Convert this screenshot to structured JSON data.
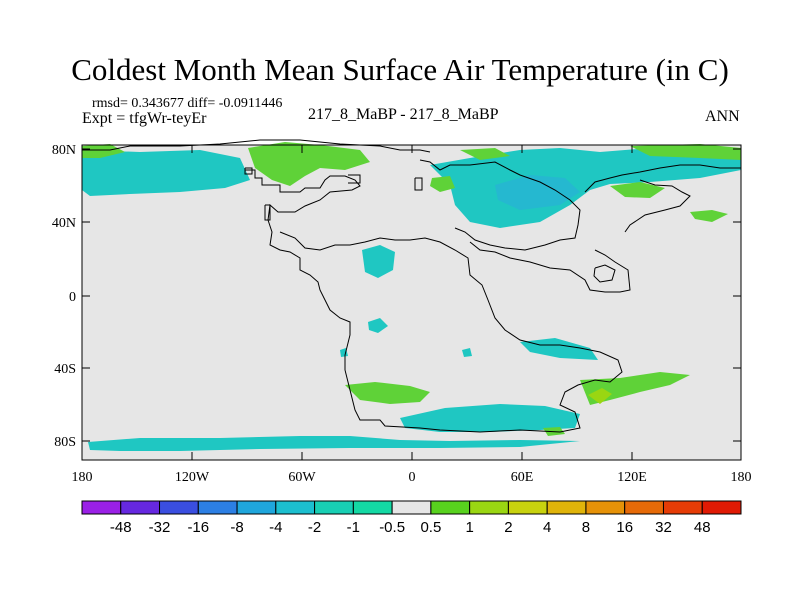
{
  "title": "Coldest Month Mean Surface Air Temperature (in C)",
  "stats": "rmsd= 0.343677 diff= -0.0911446",
  "experiment": "Expt = tfgWr-teyEr",
  "case": "217_8_MaBP - 217_8_MaBP",
  "season": "ANN",
  "colors": {
    "background_field": "#e6e6e6",
    "coastline": "#000000"
  },
  "map": {
    "lat_ticks": [
      "80N",
      "40N",
      "0",
      "40S",
      "80S"
    ],
    "lon_ticks": [
      "180",
      "120W",
      "60W",
      "0",
      "60E",
      "120E",
      "180"
    ]
  },
  "colorbar": {
    "labels": [
      "-48",
      "-32",
      "-16",
      "-8",
      "-4",
      "-2",
      "-1",
      "-0.5",
      "0.5",
      "1",
      "2",
      "4",
      "8",
      "16",
      "32",
      "48"
    ],
    "colors": [
      "#9a20e6",
      "#6628e0",
      "#3a4ee0",
      "#2c7fe4",
      "#1fa6dc",
      "#1cbfcf",
      "#18cfb4",
      "#14d9a4",
      "#e6e6e6",
      "#58d21e",
      "#9ad612",
      "#c8d20e",
      "#e0b40a",
      "#e69208",
      "#e66a08",
      "#e63c06",
      "#e01a04"
    ]
  }
}
